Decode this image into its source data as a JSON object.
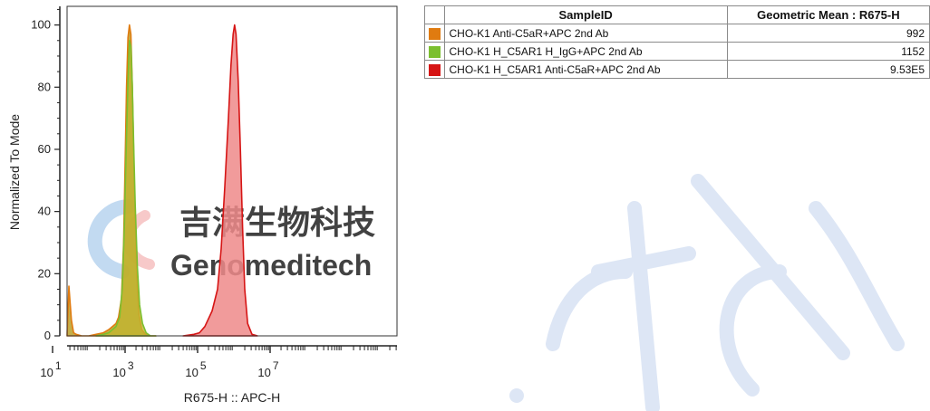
{
  "chart_data": {
    "type": "area",
    "xlabel": "R675-H :: APC-H",
    "ylabel": "Normalized To Mode",
    "x_scale": "log",
    "x_ticks": [
      "10^1",
      "10^3",
      "10^5",
      "10^7"
    ],
    "y_ticks": [
      0,
      20,
      40,
      60,
      80,
      100
    ],
    "xlim": [
      1.4,
      10.5
    ],
    "ylim": [
      0,
      106
    ],
    "series": [
      {
        "name": "CHO-K1 Anti-C5aR+APC 2nd Ab",
        "color": "#e07b10",
        "fill": "#b59a1c",
        "x": [
          1.4,
          1.45,
          1.52,
          1.58,
          1.65,
          1.8,
          2.0,
          2.2,
          2.4,
          2.55,
          2.65,
          2.75,
          2.82,
          2.9,
          2.96,
          3.0,
          3.04,
          3.08,
          3.12,
          3.16,
          3.2,
          3.26,
          3.32,
          3.38,
          3.46,
          3.56,
          3.7,
          3.85
        ],
        "y": [
          0,
          16,
          5,
          1,
          0.5,
          0,
          0,
          0.5,
          1,
          2,
          3,
          4,
          6,
          12,
          30,
          55,
          80,
          96,
          100,
          97,
          80,
          45,
          20,
          7,
          2,
          0.5,
          0,
          0
        ]
      },
      {
        "name": "CHO-K1 H_C5AR1 H_IgG+APC 2nd Ab",
        "color": "#7bbf2f",
        "fill": "#c2b430",
        "x": [
          2.2,
          2.4,
          2.55,
          2.65,
          2.75,
          2.85,
          2.92,
          2.98,
          3.03,
          3.08,
          3.12,
          3.16,
          3.2,
          3.24,
          3.28,
          3.34,
          3.4,
          3.48,
          3.58,
          3.7,
          3.85
        ],
        "y": [
          0,
          0.5,
          1,
          2,
          3,
          6,
          15,
          35,
          60,
          82,
          95,
          93,
          80,
          60,
          42,
          22,
          10,
          4,
          1,
          0,
          0
        ]
      },
      {
        "name": "CHO-K1 H_C5AR1 Anti-C5aR+APC 2nd Ab",
        "color": "#d61515",
        "fill": "#ee8a8a",
        "x": [
          4.6,
          4.9,
          5.05,
          5.2,
          5.4,
          5.55,
          5.65,
          5.75,
          5.85,
          5.92,
          5.98,
          6.02,
          6.06,
          6.12,
          6.18,
          6.24,
          6.3,
          6.38,
          6.5,
          6.65
        ],
        "y": [
          0,
          0.5,
          1,
          3,
          8,
          15,
          28,
          48,
          70,
          87,
          97,
          100,
          97,
          82,
          60,
          35,
          15,
          4,
          0.5,
          0
        ]
      }
    ]
  },
  "table": {
    "headers": [
      "",
      "SampleID",
      "Geometric Mean : R675-H"
    ],
    "rows": [
      {
        "color": "#e07b10",
        "name": "CHO-K1 Anti-C5aR+APC 2nd Ab",
        "value": "992"
      },
      {
        "color": "#7bbf2f",
        "name": "CHO-K1 H_C5AR1 H_IgG+APC 2nd Ab",
        "value": "1152"
      },
      {
        "color": "#d61515",
        "name": "CHO-K1 H_C5AR1 Anti-C5aR+APC 2nd Ab",
        "value": "9.53E5"
      }
    ]
  },
  "watermark": {
    "cn": "吉满生物科技",
    "en": "Genomeditech",
    "script": "itech"
  }
}
